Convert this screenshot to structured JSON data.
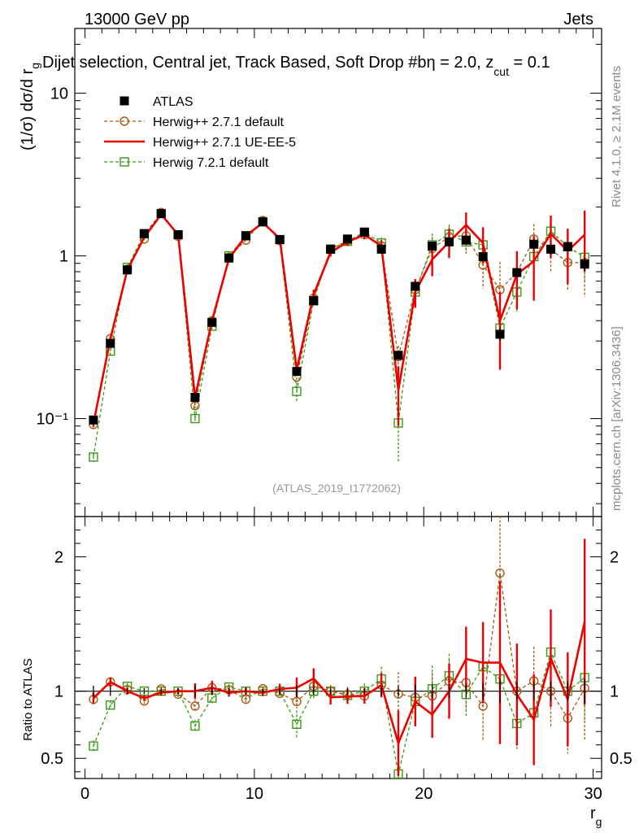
{
  "header": {
    "energy_label": "13000 GeV pp",
    "process_label": "Jets",
    "selection_prefix": "Dijet selection, Central jet, Track Based, Soft Drop #b",
    "selection_eta": "η = 2.0, z",
    "selection_zsub": "cut",
    "selection_zval": " = 0.1",
    "rivet_label": "Rivet 4.1.0, ≥ 2.1M events",
    "mcplots_label": "mcplots.cern.ch [arXiv:1306.3436]",
    "analysis_label": "(ATLAS_2019_I1772062)"
  },
  "chart_data": {
    "type": "line",
    "title": "Dijet selection, Central jet, Track Based, Soft Drop #b η = 2.0, z_cut = 0.1",
    "xlabel": "r",
    "xlabel_sub": "g",
    "ylabel": "(1/σ) dσ/d r",
    "ylabel_sub": "g",
    "ratio_ylabel": "Ratio to ATLAS",
    "xlim": [
      -0.6,
      30.5
    ],
    "ylim": [
      0.025,
      25
    ],
    "ratio_ylim": [
      0.35,
      2.3
    ],
    "x_ticks": [
      "0",
      "10",
      "20",
      "30"
    ],
    "y_ticks": [
      "10⁻¹",
      "1",
      "10"
    ],
    "ratio_ticks": [
      "0.5",
      "1",
      "2"
    ],
    "x": [
      0.5,
      1.5,
      2.5,
      3.5,
      4.5,
      5.5,
      6.5,
      7.5,
      8.5,
      9.5,
      10.5,
      11.5,
      12.5,
      13.5,
      14.5,
      15.5,
      16.5,
      17.5,
      18.5,
      19.5,
      20.5,
      21.5,
      22.5,
      23.5,
      24.5,
      25.5,
      26.5,
      27.5,
      28.5,
      29.5
    ],
    "legend": [
      "ATLAS",
      "Herwig++ 2.7.1 default",
      "Herwig++ 2.7.1 UE-EE-5",
      "Herwig 7.2.1 default"
    ],
    "series": [
      {
        "name": "ATLAS",
        "color": "#000000",
        "style": "marker-square-filled",
        "values": [
          0.098,
          0.29,
          0.82,
          1.37,
          1.82,
          1.35,
          0.135,
          0.39,
          0.97,
          1.33,
          1.62,
          1.26,
          0.195,
          0.53,
          1.1,
          1.27,
          1.4,
          1.1,
          0.245,
          0.65,
          1.15,
          1.22,
          1.25,
          0.99,
          0.33,
          0.79,
          1.18,
          1.1,
          1.14,
          0.89
        ],
        "errors": [
          0.004,
          0.01,
          0.02,
          0.03,
          0.04,
          0.03,
          0.006,
          0.01,
          0.02,
          0.03,
          0.03,
          0.03,
          0.008,
          0.015,
          0.03,
          0.03,
          0.03,
          0.04,
          0.01,
          0.03,
          0.06,
          0.06,
          0.06,
          0.06,
          0.03,
          0.05,
          0.08,
          0.08,
          0.08,
          0.08
        ]
      },
      {
        "name": "Herwig++ 2.7.1 default",
        "color": "#a55b13",
        "style": "dashed-open-circle",
        "values": [
          0.092,
          0.31,
          0.83,
          1.27,
          1.85,
          1.32,
          0.12,
          0.4,
          0.98,
          1.25,
          1.65,
          1.24,
          0.18,
          0.55,
          1.1,
          1.24,
          1.35,
          1.15,
          0.24,
          0.62,
          1.11,
          1.31,
          1.33,
          0.88,
          0.62,
          0.79,
          1.27,
          1.1,
          0.91,
          0.91
        ],
        "errors": [
          0.004,
          0.01,
          0.02,
          0.03,
          0.04,
          0.03,
          0.006,
          0.015,
          0.02,
          0.03,
          0.03,
          0.04,
          0.01,
          0.03,
          0.05,
          0.07,
          0.07,
          0.1,
          0.04,
          0.1,
          0.2,
          0.2,
          0.25,
          0.25,
          0.3,
          0.25,
          0.3,
          0.3,
          0.3,
          0.35
        ]
      },
      {
        "name": "Herwig++ 2.7.1 UE-EE-5",
        "color": "#ee0000",
        "style": "solid",
        "values": [
          0.093,
          0.31,
          0.82,
          1.3,
          1.8,
          1.35,
          0.135,
          0.4,
          0.96,
          1.33,
          1.6,
          1.28,
          0.2,
          0.58,
          1.05,
          1.22,
          1.35,
          1.15,
          0.15,
          0.6,
          0.95,
          1.22,
          1.55,
          1.2,
          0.4,
          0.77,
          0.93,
          1.37,
          1.07,
          1.35
        ],
        "errors": [
          0.004,
          0.01,
          0.02,
          0.03,
          0.04,
          0.03,
          0.008,
          0.02,
          0.03,
          0.04,
          0.04,
          0.05,
          0.015,
          0.04,
          0.06,
          0.07,
          0.08,
          0.1,
          0.06,
          0.12,
          0.2,
          0.25,
          0.3,
          0.3,
          0.2,
          0.3,
          0.4,
          0.4,
          0.4,
          0.55
        ]
      },
      {
        "name": "Herwig 7.2.1 default",
        "color": "#3a9a14",
        "style": "dashed-open-square",
        "values": [
          0.058,
          0.26,
          0.85,
          1.37,
          1.82,
          1.35,
          0.1,
          0.37,
          1.0,
          1.33,
          1.62,
          1.26,
          0.147,
          0.53,
          1.1,
          1.23,
          1.4,
          1.2,
          0.094,
          0.6,
          1.17,
          1.36,
          1.22,
          1.17,
          0.36,
          0.6,
          0.99,
          1.42,
          1.14,
          0.98
        ],
        "errors": [
          0.004,
          0.01,
          0.02,
          0.03,
          0.04,
          0.03,
          0.006,
          0.015,
          0.02,
          0.03,
          0.03,
          0.04,
          0.02,
          0.03,
          0.05,
          0.07,
          0.08,
          0.1,
          0.04,
          0.12,
          0.2,
          0.2,
          0.2,
          0.25,
          0.15,
          0.15,
          0.3,
          0.3,
          0.3,
          0.3
        ]
      }
    ]
  }
}
